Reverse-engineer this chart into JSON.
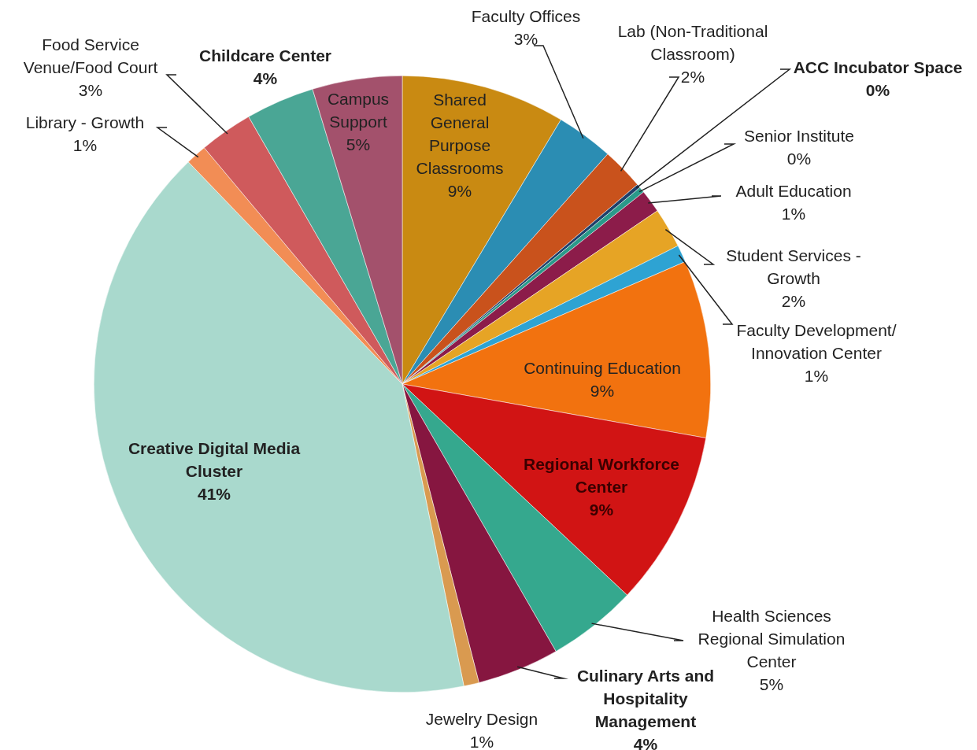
{
  "chart_data": {
    "type": "pie",
    "categories": [
      "Shared General Purpose Classrooms",
      "Faculty Offices",
      "Lab (Non-Traditional Classroom)",
      "ACC Incubator Space",
      "Senior Institute",
      "Adult Education",
      "Student Services - Growth",
      "Faculty Development/ Innovation Center",
      "Continuing Education",
      "Regional Workforce Center",
      "Health Sciences Regional Simulation Center",
      "Culinary Arts and Hospitality Management",
      "Jewelry Design",
      "Creative Digital Media Cluster",
      "Library - Growth",
      "Food Service Venue/Food Court",
      "Childcare Center",
      "Campus Support"
    ],
    "values": [
      8.6,
      3.0,
      2.2,
      0.2,
      0.3,
      1.2,
      2.1,
      0.9,
      9.3,
      9.2,
      4.7,
      4.3,
      0.8,
      41.0,
      1.1,
      2.8,
      3.6,
      4.7
    ],
    "value_labels": [
      "9%",
      "3%",
      "2%",
      "0%",
      "0%",
      "1%",
      "2%",
      "1%",
      "9%",
      "9%",
      "5%",
      "4%",
      "1%",
      "41%",
      "1%",
      "3%",
      "4%",
      "5%"
    ],
    "colors": [
      "#c98a12",
      "#2b8db3",
      "#c9521c",
      "#1f3f6a",
      "#2a9a8a",
      "#8c1c4a",
      "#e6a425",
      "#2ea3d3",
      "#f2720f",
      "#d11414",
      "#35a88e",
      "#861640",
      "#d99a50",
      "#a9d9cd",
      "#f28d55",
      "#cf5a5c",
      "#4aa695",
      "#a3516c"
    ],
    "legend": false
  }
}
